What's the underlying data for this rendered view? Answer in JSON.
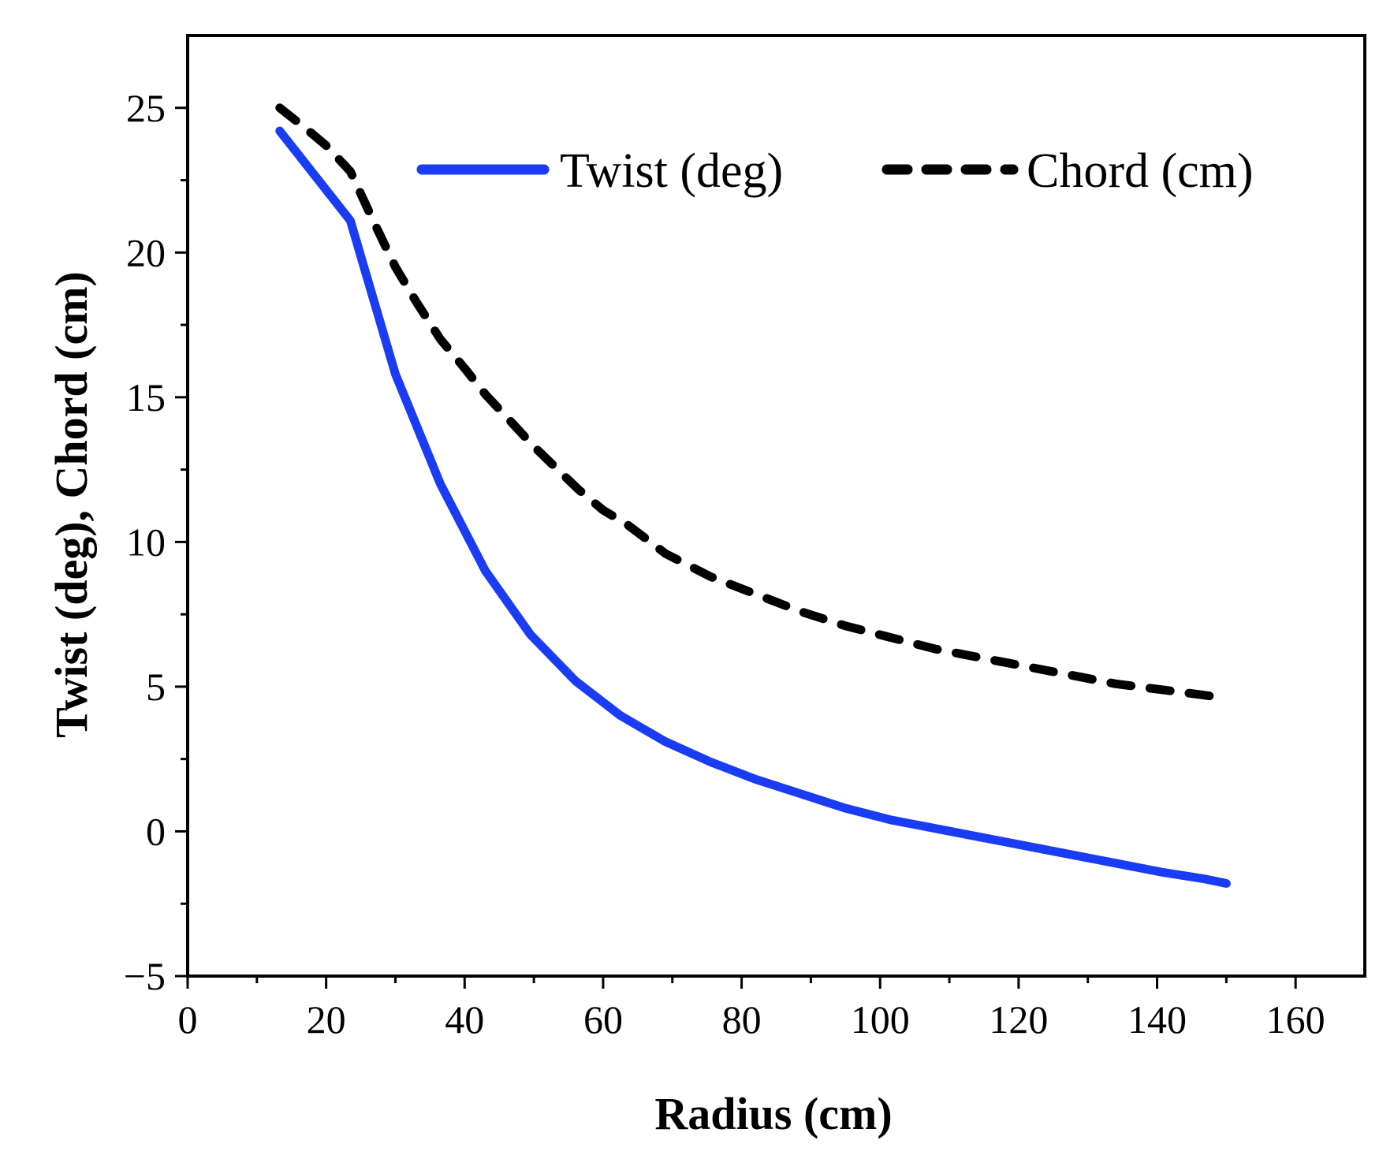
{
  "chart_data": {
    "type": "line",
    "xlabel": "Radius (cm)",
    "ylabel": "Twist (deg), Chord (cm)",
    "xlim": [
      0,
      170
    ],
    "ylim": [
      -5,
      27.5
    ],
    "x_ticks": [
      0,
      20,
      40,
      60,
      80,
      100,
      120,
      140,
      160
    ],
    "y_ticks": [
      -5,
      0,
      5,
      10,
      15,
      20,
      25
    ],
    "x_tick_labels": [
      "0",
      "20",
      "40",
      "60",
      "80",
      "100",
      "120",
      "140",
      "160"
    ],
    "y_tick_labels": [
      "−5",
      "0",
      "5",
      "10",
      "15",
      "20",
      "25"
    ],
    "grid": false,
    "legend_position": "top-right",
    "series": [
      {
        "name": "Twist (deg)",
        "color": "#1a3cf5",
        "style": "solid",
        "x": [
          13.3,
          23.5,
          30,
          36.5,
          43,
          49.5,
          56,
          62.5,
          69,
          75.5,
          82,
          88.5,
          95,
          101.5,
          108,
          114.5,
          121,
          127.5,
          134,
          140.5,
          147,
          150
        ],
        "y": [
          24.2,
          21.1,
          15.8,
          12.0,
          9.0,
          6.8,
          5.2,
          4.0,
          3.1,
          2.4,
          1.8,
          1.3,
          0.8,
          0.4,
          0.1,
          -0.2,
          -0.5,
          -0.8,
          -1.1,
          -1.4,
          -1.65,
          -1.8
        ]
      },
      {
        "name": "Chord (cm)",
        "color": "#000000",
        "style": "dashed",
        "x": [
          13.3,
          17,
          20,
          23.5,
          27,
          30,
          33,
          36.5,
          40,
          43,
          46.5,
          50,
          53,
          56.5,
          60,
          63.5,
          69,
          75.5,
          82,
          88.5,
          95,
          101.5,
          108,
          114.5,
          121,
          127.5,
          134,
          140.5,
          147,
          150
        ],
        "y": [
          25.0,
          24.3,
          23.7,
          22.8,
          21.0,
          19.5,
          18.3,
          17.0,
          16.0,
          15.1,
          14.2,
          13.3,
          12.6,
          11.8,
          11.1,
          10.6,
          9.6,
          8.8,
          8.2,
          7.6,
          7.1,
          6.7,
          6.3,
          6.0,
          5.7,
          5.4,
          5.1,
          4.9,
          4.7,
          4.6
        ]
      }
    ]
  }
}
